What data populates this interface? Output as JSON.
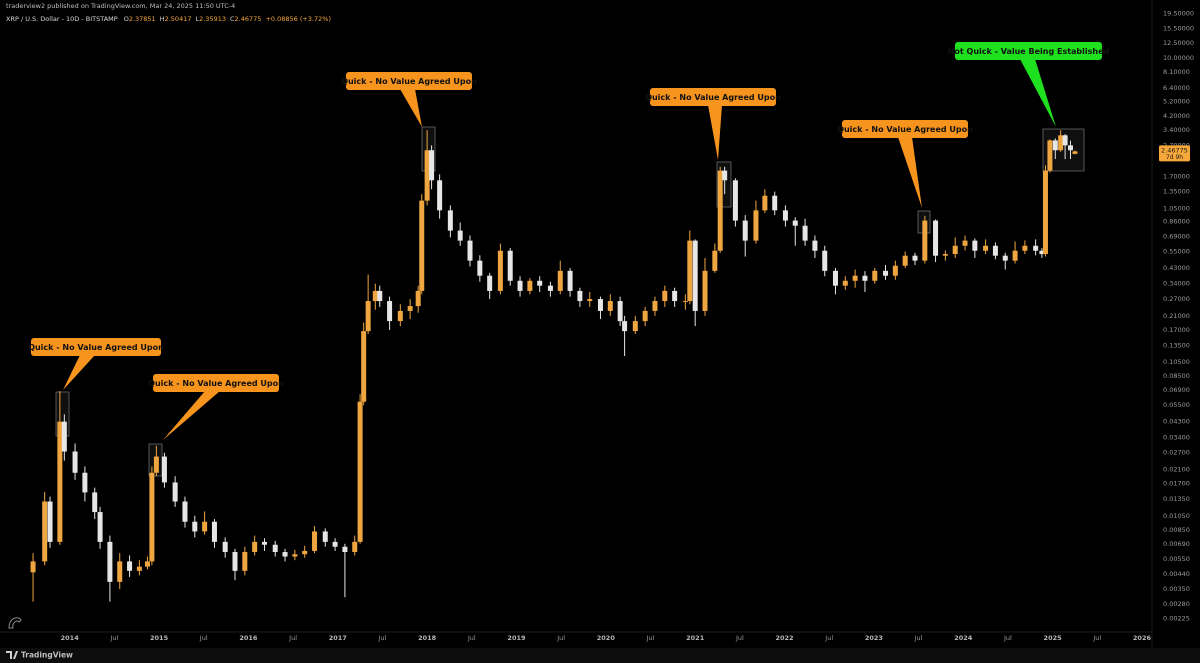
{
  "header": {
    "publisher": "traderview2 published on TradingView.com, Mar 24, 2025 11:50 UTC-4"
  },
  "footer": {
    "brand": "TradingView"
  },
  "chart_data": {
    "type": "candlestick",
    "title": "XRP / U.S. Dollar - 10D - BITSTAMP",
    "ohlc_labels": [
      "O",
      "H",
      "L",
      "C"
    ],
    "change": "+0.08856 (+3.72%)",
    "countdown": "7d 9h",
    "log_scale": true,
    "grid": false,
    "up_color": "#f0a640",
    "down_color": "#e6e6e6",
    "tag_color": "#f7a83a",
    "xlim": [
      2013.22,
      2026.09
    ],
    "xticks": [
      2014,
      {
        "value": 2014.5,
        "label": "Jul"
      },
      2015,
      {
        "value": 2015.5,
        "label": "Jul"
      },
      2016,
      {
        "value": 2016.5,
        "label": "Jul"
      },
      2017,
      {
        "value": 2017.5,
        "label": "Jul"
      },
      2018,
      {
        "value": 2018.5,
        "label": "Jul"
      },
      2019,
      {
        "value": 2019.5,
        "label": "Jul"
      },
      2020,
      {
        "value": 2020.5,
        "label": "Jul"
      },
      2021,
      {
        "value": 2021.5,
        "label": "Jul"
      },
      2022,
      {
        "value": 2022.5,
        "label": "Jul"
      },
      2023,
      {
        "value": 2023.5,
        "label": "Jul"
      },
      2024,
      {
        "value": 2024.5,
        "label": "Jul"
      },
      2025,
      {
        "value": 2025.5,
        "label": "Jul"
      },
      2026
    ],
    "ylim": [
      0.00184,
      21.15
    ],
    "yticks": [
      {
        "value": 19.5,
        "label": "19.50000"
      },
      {
        "value": 15.5,
        "label": "15.50000"
      },
      {
        "value": 12.5,
        "label": "12.50000"
      },
      {
        "value": 10,
        "label": "10.00000"
      },
      {
        "value": 8.1,
        "label": "8.10000"
      },
      {
        "value": 6.4,
        "label": "6.40000"
      },
      {
        "value": 5.2,
        "label": "5.20000"
      },
      {
        "value": 4.2,
        "label": "4.20000"
      },
      {
        "value": 3.4,
        "label": "3.40000"
      },
      {
        "value": 2.7,
        "label": "2.70000"
      },
      {
        "value": 1.7,
        "label": "1.70000"
      },
      {
        "value": 1.35,
        "label": "1.35000"
      },
      {
        "value": 1.05,
        "label": "1.05000"
      },
      {
        "value": 0.86,
        "label": "0.86000"
      },
      {
        "value": 0.69,
        "label": "0.69000"
      },
      {
        "value": 0.55,
        "label": "0.55000"
      },
      {
        "value": 0.43,
        "label": "0.43000"
      },
      {
        "value": 0.34,
        "label": "0.34000"
      },
      {
        "value": 0.27,
        "label": "0.27000"
      },
      {
        "value": 0.21,
        "label": "0.21000"
      },
      {
        "value": 0.17,
        "label": "0.17000"
      },
      {
        "value": 0.135,
        "label": "0.13500"
      },
      {
        "value": 0.105,
        "label": "0.10500"
      },
      {
        "value": 0.085,
        "label": "0.08500"
      },
      {
        "value": 0.069,
        "label": "0.06900"
      },
      {
        "value": 0.055,
        "label": "0.05500"
      },
      {
        "value": 0.043,
        "label": "0.04300"
      },
      {
        "value": 0.034,
        "label": "0.03400"
      },
      {
        "value": 0.027,
        "label": "0.02700"
      },
      {
        "value": 0.021,
        "label": "0.02100"
      },
      {
        "value": 0.017,
        "label": "0.01700"
      },
      {
        "value": 0.0135,
        "label": "0.01350"
      },
      {
        "value": 0.0105,
        "label": "0.01050"
      },
      {
        "value": 0.0085,
        "label": "0.00850"
      },
      {
        "value": 0.0069,
        "label": "0.00690"
      },
      {
        "value": 0.0055,
        "label": "0.00550"
      },
      {
        "value": 0.0044,
        "label": "0.00440"
      },
      {
        "value": 0.0035,
        "label": "0.00350"
      },
      {
        "value": 0.0028,
        "label": "0.00280"
      },
      {
        "value": 0.00225,
        "label": "0.00225"
      }
    ],
    "candles": {
      "x": [
        2013.59,
        2013.72,
        2013.78,
        2013.89,
        2013.94,
        2014.06,
        2014.17,
        2014.28,
        2014.34,
        2014.45,
        2014.56,
        2014.67,
        2014.78,
        2014.87,
        2014.92,
        2014.97,
        2015.06,
        2015.18,
        2015.29,
        2015.4,
        2015.51,
        2015.62,
        2015.74,
        2015.85,
        2015.96,
        2016.07,
        2016.18,
        2016.3,
        2016.41,
        2016.52,
        2016.63,
        2016.74,
        2016.86,
        2016.97,
        2017.08,
        2017.19,
        2017.25,
        2017.29,
        2017.34,
        2017.42,
        2017.47,
        2017.58,
        2017.7,
        2017.81,
        2017.9,
        2017.94,
        2018.0,
        2018.05,
        2018.14,
        2018.26,
        2018.37,
        2018.48,
        2018.59,
        2018.7,
        2018.82,
        2018.93,
        2019.04,
        2019.15,
        2019.26,
        2019.38,
        2019.49,
        2019.6,
        2019.71,
        2019.82,
        2019.94,
        2020.05,
        2020.16,
        2020.21,
        2020.33,
        2020.44,
        2020.55,
        2020.66,
        2020.77,
        2020.89,
        2020.94,
        2021.0,
        2021.11,
        2021.22,
        2021.28,
        2021.33,
        2021.45,
        2021.56,
        2021.68,
        2021.78,
        2021.89,
        2022.01,
        2022.12,
        2022.23,
        2022.34,
        2022.45,
        2022.57,
        2022.68,
        2022.79,
        2022.9,
        2023.01,
        2023.13,
        2023.24,
        2023.35,
        2023.46,
        2023.57,
        2023.69,
        2023.8,
        2023.91,
        2024.02,
        2024.13,
        2024.25,
        2024.36,
        2024.47,
        2024.58,
        2024.69,
        2024.81,
        2024.88,
        2024.92,
        2024.97,
        2025.03,
        2025.09,
        2025.14,
        2025.2,
        2025.25
      ],
      "open": [
        0.0045,
        0.0053,
        0.013,
        0.0071,
        0.043,
        0.0275,
        0.02,
        0.0149,
        0.0111,
        0.0071,
        0.0039,
        0.0053,
        0.0046,
        0.0049,
        0.0053,
        0.02,
        0.0255,
        0.0173,
        0.013,
        0.0096,
        0.0083,
        0.0096,
        0.0071,
        0.0061,
        0.0046,
        0.0061,
        0.0071,
        0.0068,
        0.0061,
        0.0057,
        0.0059,
        0.0062,
        0.0083,
        0.0071,
        0.0066,
        0.0061,
        0.0071,
        0.058,
        0.167,
        0.262,
        0.305,
        0.262,
        0.194,
        0.226,
        0.243,
        0.305,
        1.18,
        2.51,
        1.6,
        1.02,
        0.753,
        0.648,
        0.48,
        0.383,
        0.305,
        0.557,
        0.355,
        0.305,
        0.355,
        0.33,
        0.305,
        0.412,
        0.305,
        0.262,
        0.27,
        0.226,
        0.262,
        0.194,
        0.167,
        0.194,
        0.226,
        0.262,
        0.305,
        0.262,
        0.262,
        0.648,
        0.226,
        0.412,
        0.557,
        1.85,
        1.6,
        0.875,
        0.648,
        1.02,
        1.27,
        1.02,
        0.875,
        0.81,
        0.648,
        0.557,
        0.412,
        0.33,
        0.355,
        0.383,
        0.355,
        0.412,
        0.383,
        0.445,
        0.517,
        0.48,
        0.875,
        0.517,
        0.53,
        0.6,
        0.648,
        0.557,
        0.6,
        0.517,
        0.48,
        0.557,
        0.6,
        0.557,
        0.53,
        1.85,
        2.91,
        2.51,
        3.14,
        2.7,
        2.37851
      ],
      "high": [
        0.006,
        0.015,
        0.014,
        0.068,
        0.048,
        0.031,
        0.022,
        0.016,
        0.012,
        0.0078,
        0.006,
        0.0058,
        0.0054,
        0.0057,
        0.022,
        0.03,
        0.027,
        0.019,
        0.014,
        0.0105,
        0.0112,
        0.01,
        0.0076,
        0.0064,
        0.0066,
        0.0078,
        0.0075,
        0.0072,
        0.0064,
        0.0063,
        0.0067,
        0.009,
        0.0087,
        0.0075,
        0.0069,
        0.0078,
        0.065,
        0.19,
        0.39,
        0.34,
        0.33,
        0.28,
        0.25,
        0.27,
        0.33,
        1.3,
        3.39,
        2.7,
        1.75,
        1.1,
        0.85,
        0.7,
        0.52,
        0.4,
        0.62,
        0.58,
        0.38,
        0.37,
        0.38,
        0.35,
        0.48,
        0.43,
        0.32,
        0.3,
        0.28,
        0.29,
        0.28,
        0.21,
        0.21,
        0.24,
        0.28,
        0.33,
        0.32,
        0.29,
        0.753,
        0.66,
        0.5,
        0.62,
        1.96,
        1.96,
        1.65,
        0.95,
        1.18,
        1.4,
        1.35,
        1.1,
        0.92,
        0.9,
        0.7,
        0.6,
        0.43,
        0.38,
        0.42,
        0.41,
        0.43,
        0.45,
        0.48,
        0.55,
        0.54,
        0.94,
        0.89,
        0.56,
        0.68,
        0.7,
        0.67,
        0.66,
        0.63,
        0.54,
        0.64,
        0.65,
        0.66,
        0.58,
        2.0,
        2.95,
        3.0,
        3.39,
        3.2,
        2.9,
        2.50417
      ],
      "low": [
        0.0029,
        0.005,
        0.0065,
        0.0068,
        0.024,
        0.018,
        0.013,
        0.01,
        0.0064,
        0.0029,
        0.0035,
        0.0042,
        0.0043,
        0.0047,
        0.005,
        0.019,
        0.016,
        0.012,
        0.0088,
        0.0076,
        0.0079,
        0.0065,
        0.0056,
        0.004,
        0.0043,
        0.0058,
        0.0062,
        0.0057,
        0.0053,
        0.0054,
        0.0056,
        0.006,
        0.0066,
        0.0062,
        0.0031,
        0.0058,
        0.0069,
        0.055,
        0.16,
        0.23,
        0.24,
        0.17,
        0.18,
        0.2,
        0.22,
        0.29,
        1.1,
        1.4,
        0.9,
        0.68,
        0.6,
        0.44,
        0.35,
        0.27,
        0.29,
        0.33,
        0.28,
        0.29,
        0.3,
        0.28,
        0.29,
        0.28,
        0.24,
        0.24,
        0.2,
        0.21,
        0.18,
        0.115,
        0.16,
        0.18,
        0.21,
        0.24,
        0.24,
        0.23,
        0.25,
        0.18,
        0.21,
        0.4,
        0.54,
        1.3,
        0.8,
        0.51,
        0.62,
        0.98,
        0.95,
        0.8,
        0.6,
        0.6,
        0.5,
        0.38,
        0.29,
        0.31,
        0.32,
        0.3,
        0.34,
        0.36,
        0.36,
        0.43,
        0.45,
        0.46,
        0.47,
        0.48,
        0.5,
        0.56,
        0.5,
        0.53,
        0.49,
        0.42,
        0.46,
        0.53,
        0.52,
        0.5,
        0.51,
        1.8,
        2.2,
        2.45,
        2.2,
        2.2,
        2.35913
      ],
      "close": [
        0.0053,
        0.013,
        0.0071,
        0.043,
        0.0275,
        0.02,
        0.0149,
        0.0111,
        0.0071,
        0.0039,
        0.0053,
        0.0046,
        0.0049,
        0.0053,
        0.02,
        0.0255,
        0.0173,
        0.013,
        0.0096,
        0.0083,
        0.0096,
        0.0071,
        0.0061,
        0.0046,
        0.0061,
        0.0071,
        0.0068,
        0.0061,
        0.0057,
        0.0059,
        0.0062,
        0.0083,
        0.0071,
        0.0066,
        0.0061,
        0.0071,
        0.058,
        0.167,
        0.262,
        0.305,
        0.262,
        0.194,
        0.226,
        0.243,
        0.305,
        1.18,
        2.51,
        1.6,
        1.02,
        0.753,
        0.648,
        0.48,
        0.383,
        0.305,
        0.557,
        0.355,
        0.305,
        0.355,
        0.33,
        0.305,
        0.412,
        0.305,
        0.262,
        0.27,
        0.226,
        0.262,
        0.194,
        0.167,
        0.194,
        0.226,
        0.262,
        0.305,
        0.262,
        0.262,
        0.648,
        0.226,
        0.412,
        0.557,
        1.85,
        1.6,
        0.875,
        0.648,
        1.02,
        1.27,
        1.02,
        0.875,
        0.81,
        0.648,
        0.557,
        0.412,
        0.33,
        0.355,
        0.383,
        0.355,
        0.412,
        0.383,
        0.445,
        0.517,
        0.48,
        0.875,
        0.517,
        0.53,
        0.6,
        0.648,
        0.557,
        0.6,
        0.517,
        0.48,
        0.557,
        0.6,
        0.557,
        0.53,
        1.85,
        2.91,
        2.51,
        3.14,
        2.7,
        2.51,
        2.46775
      ]
    },
    "annotations": [
      {
        "text": "Quick - No Value Agreed Upon",
        "color": "#f7941d"
      },
      {
        "text": "Quick - No Value Agreed Upon",
        "color": "#f7941d"
      },
      {
        "text": "Quick - No Value Agreed Upon",
        "color": "#f7941d"
      },
      {
        "text": "Quick - No Value Agreed Upon",
        "color": "#f7941d"
      },
      {
        "text": "Quick - No Value Agreed Upon",
        "color": "#f7941d"
      },
      {
        "text": "Not Quick - Value Being Established",
        "color": "#1fe01f"
      }
    ]
  }
}
